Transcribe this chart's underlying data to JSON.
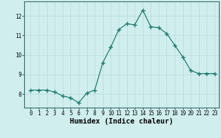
{
  "xlabel": "Humidex (Indice chaleur)",
  "x": [
    0,
    1,
    2,
    3,
    4,
    5,
    6,
    7,
    8,
    9,
    10,
    11,
    12,
    13,
    14,
    15,
    16,
    17,
    18,
    19,
    20,
    21,
    22,
    23
  ],
  "y": [
    8.2,
    8.2,
    8.2,
    8.1,
    7.9,
    7.8,
    7.55,
    8.05,
    8.2,
    9.6,
    10.4,
    11.3,
    11.6,
    11.55,
    12.3,
    11.45,
    11.4,
    11.1,
    10.5,
    9.9,
    9.2,
    9.05,
    9.05,
    9.05
  ],
  "line_color": "#1a7a6e",
  "marker": "+",
  "marker_size": 4,
  "bg_color": "#d0eeee",
  "grid_color": "#b8d8d8",
  "ylim": [
    7.3,
    12.75
  ],
  "yticks": [
    8,
    9,
    10,
    11,
    12
  ],
  "xticks": [
    0,
    1,
    2,
    3,
    4,
    5,
    6,
    7,
    8,
    9,
    10,
    11,
    12,
    13,
    14,
    15,
    16,
    17,
    18,
    19,
    20,
    21,
    22,
    23
  ],
  "tick_fontsize": 5.5,
  "xlabel_fontsize": 7.5,
  "axis_color": "#336666"
}
